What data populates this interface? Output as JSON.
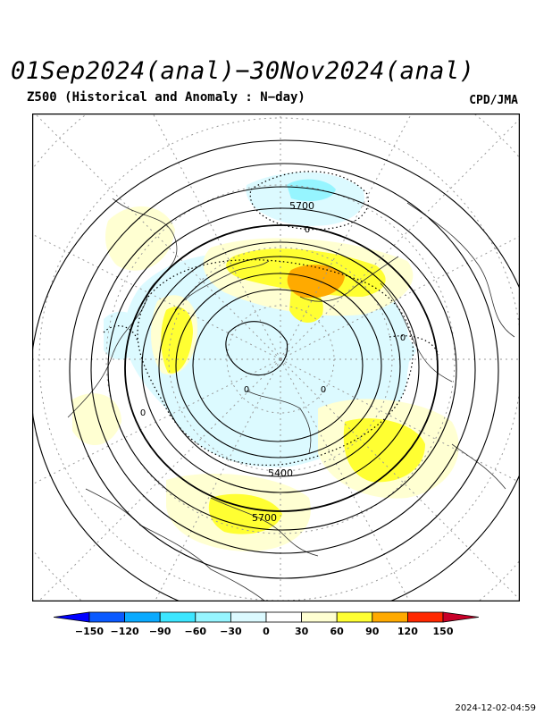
{
  "header": {
    "title": "01Sep2024(anal)−30Nov2024(anal)",
    "subtitle": "Z500 (Historical and Anomaly : N−day)",
    "credit": "CPD/JMA"
  },
  "map": {
    "projection": "polar-stereographic-north",
    "contour_labels": [
      {
        "text": "5700"
      },
      {
        "text": "5700"
      },
      {
        "text": "5400"
      }
    ],
    "anomaly_zero_labels": [
      "0",
      "0",
      "0",
      "0",
      "0"
    ]
  },
  "colorbar": {
    "tick_labels": [
      "−150",
      "−120",
      "−90",
      "−60",
      "−30",
      "0",
      "30",
      "60",
      "90",
      "120",
      "150"
    ],
    "colors": [
      "#0000ff",
      "#0a5aff",
      "#0aaaff",
      "#3ce6ff",
      "#96f5ff",
      "#dcfaff",
      "#ffffff",
      "#ffffd2",
      "#ffff32",
      "#ffaa00",
      "#ff2800",
      "#c80028"
    ]
  },
  "footer": {
    "timestamp": "2024-12-02-04:59"
  }
}
